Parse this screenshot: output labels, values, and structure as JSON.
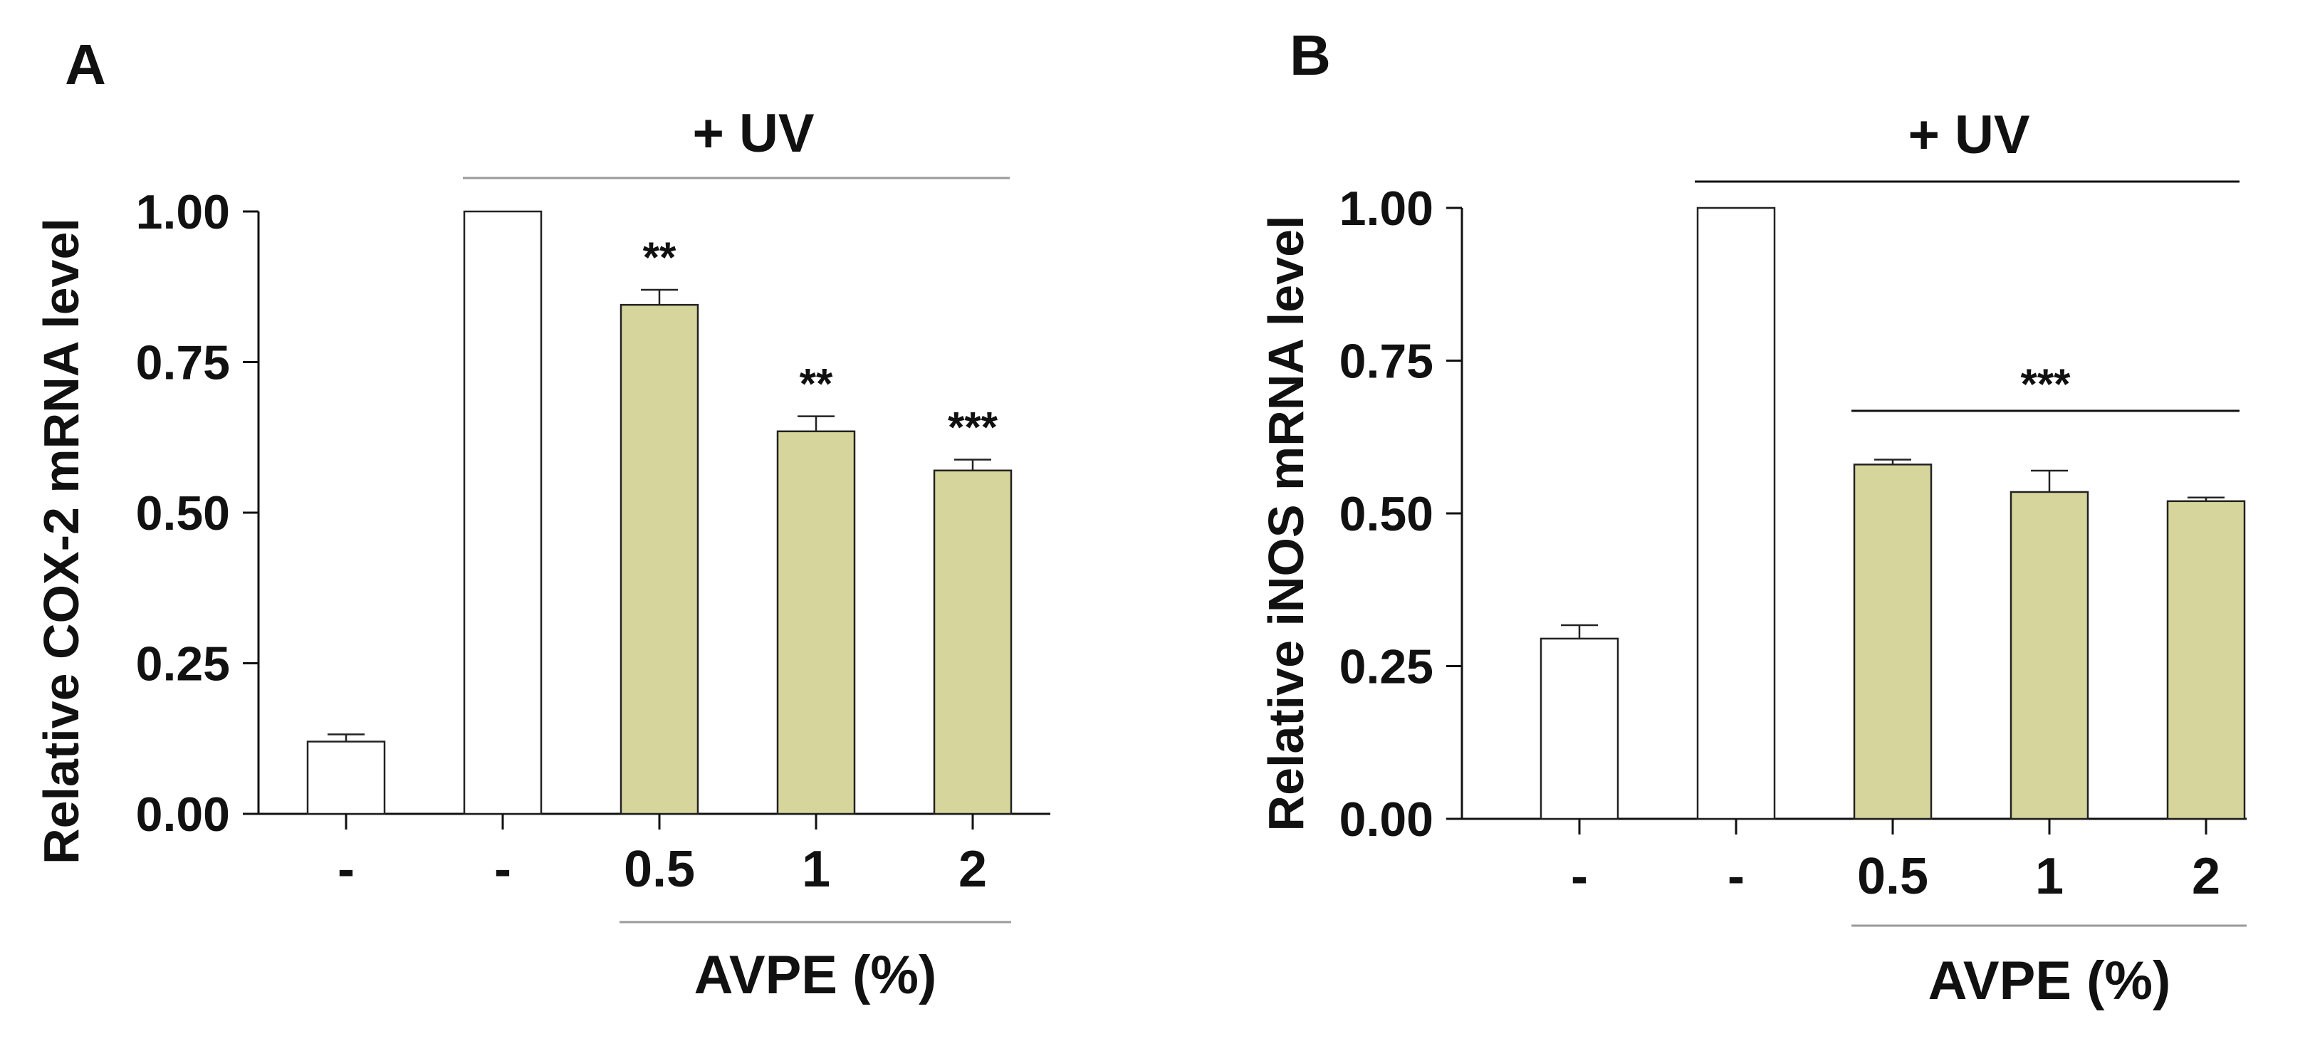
{
  "colors": {
    "axis": "#111111",
    "treated_fill": "#d6d69c",
    "control_fill": "#ffffff",
    "bar_stroke": "#222222",
    "uv_line": "#9a9a9a",
    "avpe_line": "#9a9a9a"
  },
  "chart_data": [
    {
      "panel": "A",
      "type": "bar",
      "ylabel": "Relative COX-2 mRNA level",
      "ylim": [
        0,
        1.0
      ],
      "yticks": [
        "0.00",
        "0.25",
        "0.50",
        "0.75",
        "1.00"
      ],
      "categories": [
        "-",
        "-",
        "0.5",
        "1",
        "2"
      ],
      "values": [
        0.12,
        1.0,
        0.845,
        0.635,
        0.57
      ],
      "errors": [
        0.012,
        0.0,
        0.025,
        0.025,
        0.018
      ],
      "treated": [
        false,
        false,
        true,
        true,
        true
      ],
      "significance": [
        "",
        "",
        "**",
        "**",
        "***"
      ],
      "group_label": "+ UV",
      "xlabel": "AVPE (%)",
      "grid": false
    },
    {
      "panel": "B",
      "type": "bar",
      "ylabel": "Relative iNOS mRNA level",
      "ylim": [
        0,
        1.0
      ],
      "yticks": [
        "0.00",
        "0.25",
        "0.50",
        "0.75",
        "1.00"
      ],
      "categories": [
        "-",
        "-",
        "0.5",
        "1",
        "2"
      ],
      "values": [
        0.295,
        1.0,
        0.58,
        0.535,
        0.52
      ],
      "errors": [
        0.022,
        0.0,
        0.008,
        0.035,
        0.006
      ],
      "treated": [
        false,
        false,
        true,
        true,
        true
      ],
      "significance_bracket": "***",
      "group_label": "+ UV",
      "xlabel": "AVPE (%)",
      "grid": false
    }
  ]
}
